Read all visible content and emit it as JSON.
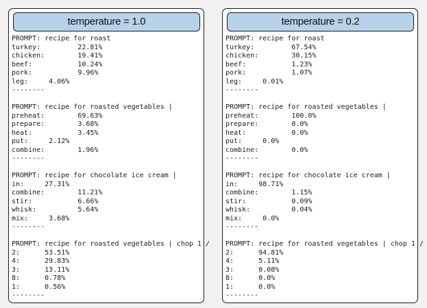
{
  "panels": [
    {
      "title": "temperature = 1.0",
      "blocks": [
        {
          "prompt": "PROMPT: recipe for roast",
          "rows": [
            "turkey:         22.81%",
            "chicken:        19.41%",
            "beef:           10.24%",
            "pork:           9.96%",
            "leg:     4.06%"
          ],
          "sep": "--------"
        },
        {
          "prompt": "PROMPT: recipe for roasted vegetables |",
          "rows": [
            "preheat:        69.63%",
            "prepare:        3.68%",
            "heat:           3.45%",
            "put:     2.12%",
            "combine:        1.96%"
          ],
          "sep": "--------"
        },
        {
          "prompt": "PROMPT: recipe for chocolate ice cream |",
          "rows": [
            "in:     27.31%",
            "combine:        11.21%",
            "stir:           6.66%",
            "whisk:          5.64%",
            "mix:     3.68%"
          ],
          "sep": "--------"
        },
        {
          "prompt": "PROMPT: recipe for roasted vegetables | chop 1 /",
          "rows": [
            "2:      53.51%",
            "4:      29.83%",
            "3:      13.11%",
            "8:      0.78%",
            "1:      0.56%"
          ],
          "sep": "--------"
        }
      ]
    },
    {
      "title": "temperature = 0.2",
      "blocks": [
        {
          "prompt": "PROMPT: recipe for roast",
          "rows": [
            "turkey:         67.54%",
            "chicken:        30.15%",
            "beef:           1.23%",
            "pork:           1.07%",
            "leg:     0.01%"
          ],
          "sep": "--------"
        },
        {
          "prompt": "PROMPT: recipe for roasted vegetables |",
          "rows": [
            "preheat:        100.0%",
            "prepare:        0.0%",
            "heat:           0.0%",
            "put:     0.0%",
            "combine:        0.0%"
          ],
          "sep": "--------"
        },
        {
          "prompt": "PROMPT: recipe for chocolate ice cream |",
          "rows": [
            "in:     98.71%",
            "combine:        1.15%",
            "stir:           0.09%",
            "whisk:          0.04%",
            "mix:     0.0%"
          ],
          "sep": "--------"
        },
        {
          "prompt": "PROMPT: recipe for roasted vegetables | chop 1 /",
          "rows": [
            "2:      94.81%",
            "4:      5.11%",
            "3:      0.08%",
            "8:      0.0%",
            "1:      0.0%"
          ],
          "sep": "--------"
        }
      ]
    }
  ]
}
